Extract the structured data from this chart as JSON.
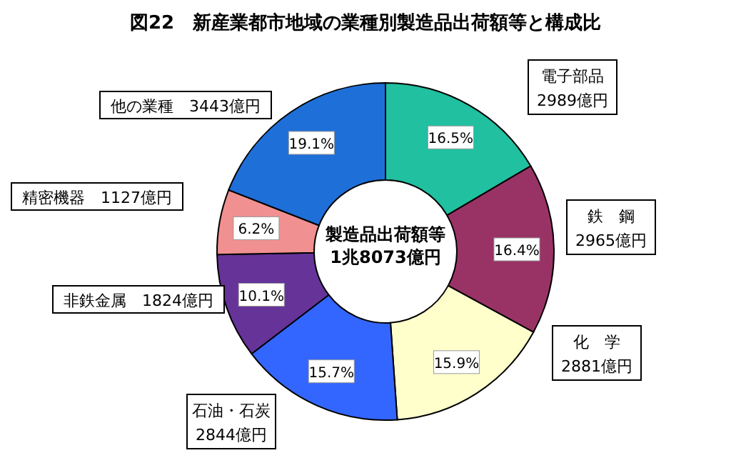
{
  "chart_data": {
    "type": "donut",
    "title": "図22　新産業都市地域の業種別製造品出荷額等と構成比",
    "categories": [
      "電子部品",
      "鉄　鋼",
      "化　学",
      "石油・石炭",
      "非鉄金属",
      "精密機器",
      "他の業種"
    ],
    "values": [
      2989,
      2965,
      2881,
      2844,
      1824,
      1127,
      3443
    ],
    "value_labels": [
      "2989億円",
      "2965億円",
      "2881億円",
      "2844億円",
      "1824億円",
      "1127億円",
      "3443億円"
    ],
    "colors": [
      "#20c0a0",
      "#993366",
      "#ffffcc",
      "#3366ff",
      "#663399",
      "#f09090",
      "#1f6fd8"
    ],
    "annotations": [
      "製造品出荷額等\n1兆8073億円",
      "16.5%",
      "16.4%",
      "15.9%",
      "15.7%",
      "10.1%",
      "6.2%",
      "19.1%"
    ]
  }
}
